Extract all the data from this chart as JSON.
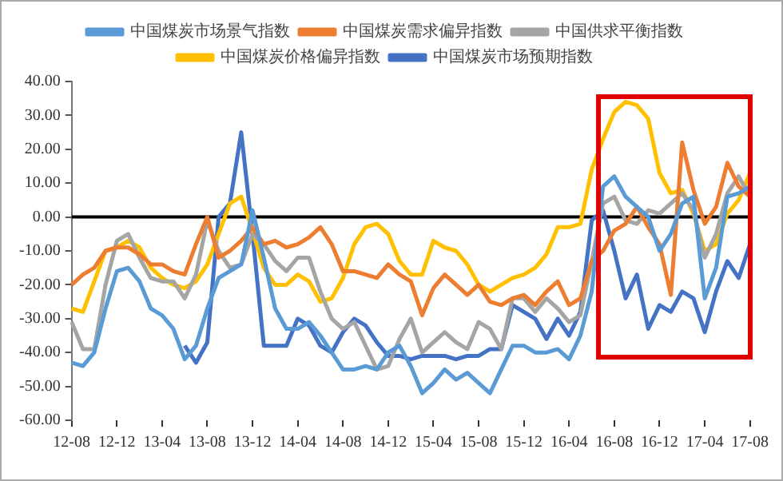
{
  "chart_data": {
    "type": "line",
    "categories": [
      "12-08",
      null,
      null,
      null,
      "12-12",
      null,
      null,
      null,
      "13-04",
      null,
      null,
      null,
      "13-08",
      null,
      null,
      null,
      "13-12",
      null,
      null,
      null,
      "14-04",
      null,
      null,
      null,
      "14-08",
      null,
      null,
      null,
      "14-12",
      null,
      null,
      null,
      "15-04",
      null,
      null,
      null,
      "15-08",
      null,
      null,
      null,
      "15-12",
      null,
      null,
      null,
      "16-04",
      null,
      null,
      null,
      "16-08",
      null,
      null,
      null,
      "16-12",
      null,
      null,
      null,
      "17-04",
      null,
      null,
      null,
      "17-08"
    ],
    "series": [
      {
        "name": "中国煤炭市场景气指数",
        "color": "#5b9bd5",
        "values": [
          -43,
          -44,
          -40,
          -27,
          -16,
          -15,
          -19,
          -27,
          -29,
          -33,
          -42,
          -38,
          -27,
          -18,
          -16,
          -14,
          2,
          -12,
          -27,
          -33,
          -33,
          -31,
          -35,
          -40,
          -45,
          -45,
          -44,
          -45,
          -40,
          -38,
          -44,
          -52,
          -49,
          -45,
          -48,
          -46,
          -49,
          -52,
          -45,
          -38,
          -38,
          -40,
          -40,
          -39,
          -42,
          -35,
          -22,
          9,
          12,
          6,
          3,
          0,
          -10,
          -5,
          4,
          6,
          -24,
          -15,
          6,
          7,
          9
        ]
      },
      {
        "name": "中国煤炭需求偏异指数",
        "color": "#ed7d31",
        "values": [
          -20,
          -17,
          -15,
          -10,
          -9,
          -9,
          -11,
          -14,
          -14,
          -16,
          -17,
          -8,
          0,
          -12,
          -10,
          -7,
          -3,
          -8,
          -7,
          -9,
          -8,
          -6,
          -3,
          -8,
          -16,
          -16,
          -17,
          -18,
          -14,
          -17,
          -19,
          -29,
          -21,
          -17,
          -20,
          -23,
          -20,
          -25,
          -26,
          -24,
          -23,
          -26,
          -22,
          -19,
          -26,
          -24,
          -13,
          -10,
          -4,
          -2,
          3,
          -3,
          -8,
          -23,
          22,
          8,
          -2,
          3,
          16,
          9,
          6
        ]
      },
      {
        "name": "中国供求平衡指数",
        "color": "#a5a5a5",
        "values": [
          -31,
          -39,
          -39,
          -20,
          -7,
          -5,
          -12,
          -18,
          -19,
          -19,
          -24,
          -17,
          -1,
          -10,
          -15,
          -14,
          -5,
          -8,
          -13,
          -16,
          -12,
          -12,
          -22,
          -30,
          -33,
          -31,
          -38,
          -45,
          -44,
          -36,
          -30,
          -40,
          -37,
          -34,
          -37,
          -39,
          -31,
          -33,
          -39,
          -24,
          -24,
          -28,
          -24,
          -27,
          -31,
          -29,
          -13,
          4,
          6,
          -1,
          -2,
          2,
          1,
          4,
          7,
          2,
          -12,
          -5,
          7,
          12,
          6
        ]
      },
      {
        "name": "中国煤炭价格偏异指数",
        "color": "#ffc000",
        "values": [
          -27,
          -28,
          -19,
          -10,
          -9,
          -7,
          -9,
          -15,
          -18,
          -20,
          -21,
          -19,
          -14,
          -5,
          4,
          6,
          -4,
          -15,
          -20,
          -20,
          -17,
          -19,
          -25,
          -24,
          -18,
          -8,
          -3,
          -2,
          -5,
          -13,
          -17,
          -17,
          -7,
          -9,
          -10,
          -14,
          -20,
          -22,
          -20,
          -18,
          -17,
          -15,
          -11,
          -3,
          -3,
          -2,
          14,
          23,
          31,
          34,
          33,
          29,
          13,
          7,
          8,
          1,
          -10,
          -8,
          1,
          5,
          13
        ]
      },
      {
        "name": "中国煤炭市场预期指数",
        "color": "#4472c4",
        "values": [
          null,
          null,
          null,
          null,
          null,
          null,
          null,
          null,
          null,
          null,
          -38,
          -43,
          -37,
          0,
          4,
          25,
          -5,
          -38,
          -38,
          -38,
          -30,
          -32,
          -38,
          -40,
          -34,
          -30,
          -32,
          -37,
          -41,
          -41,
          -42,
          -41,
          -41,
          -41,
          -42,
          -41,
          -41,
          -39,
          -39,
          -26,
          -28,
          -30,
          -36,
          -30,
          -35,
          -28,
          -1,
          2,
          -10,
          -24,
          -17,
          -33,
          -26,
          -28,
          -22,
          -24,
          -34,
          -22,
          -13,
          -18,
          -8
        ]
      }
    ],
    "ylim": [
      -60,
      40
    ],
    "yticks": [
      {
        "value": -60,
        "label": "-60.00"
      },
      {
        "value": -50,
        "label": "-50.00"
      },
      {
        "value": -40,
        "label": "-40.00"
      },
      {
        "value": -30,
        "label": "-30.00"
      },
      {
        "value": -20,
        "label": "-20.00"
      },
      {
        "value": -10,
        "label": "-10.00"
      },
      {
        "value": 0,
        "label": "0.00"
      },
      {
        "value": 10,
        "label": "10.00"
      },
      {
        "value": 20,
        "label": "20.00"
      },
      {
        "value": 30,
        "label": "30.00"
      },
      {
        "value": 40,
        "label": "40.00"
      }
    ],
    "ref_lines": [
      {
        "axis": "y",
        "value": 0,
        "color": "#000000",
        "line_style": "solid"
      }
    ],
    "grid": false,
    "legend": "top",
    "marker": "none",
    "line_style": "solid"
  }
}
